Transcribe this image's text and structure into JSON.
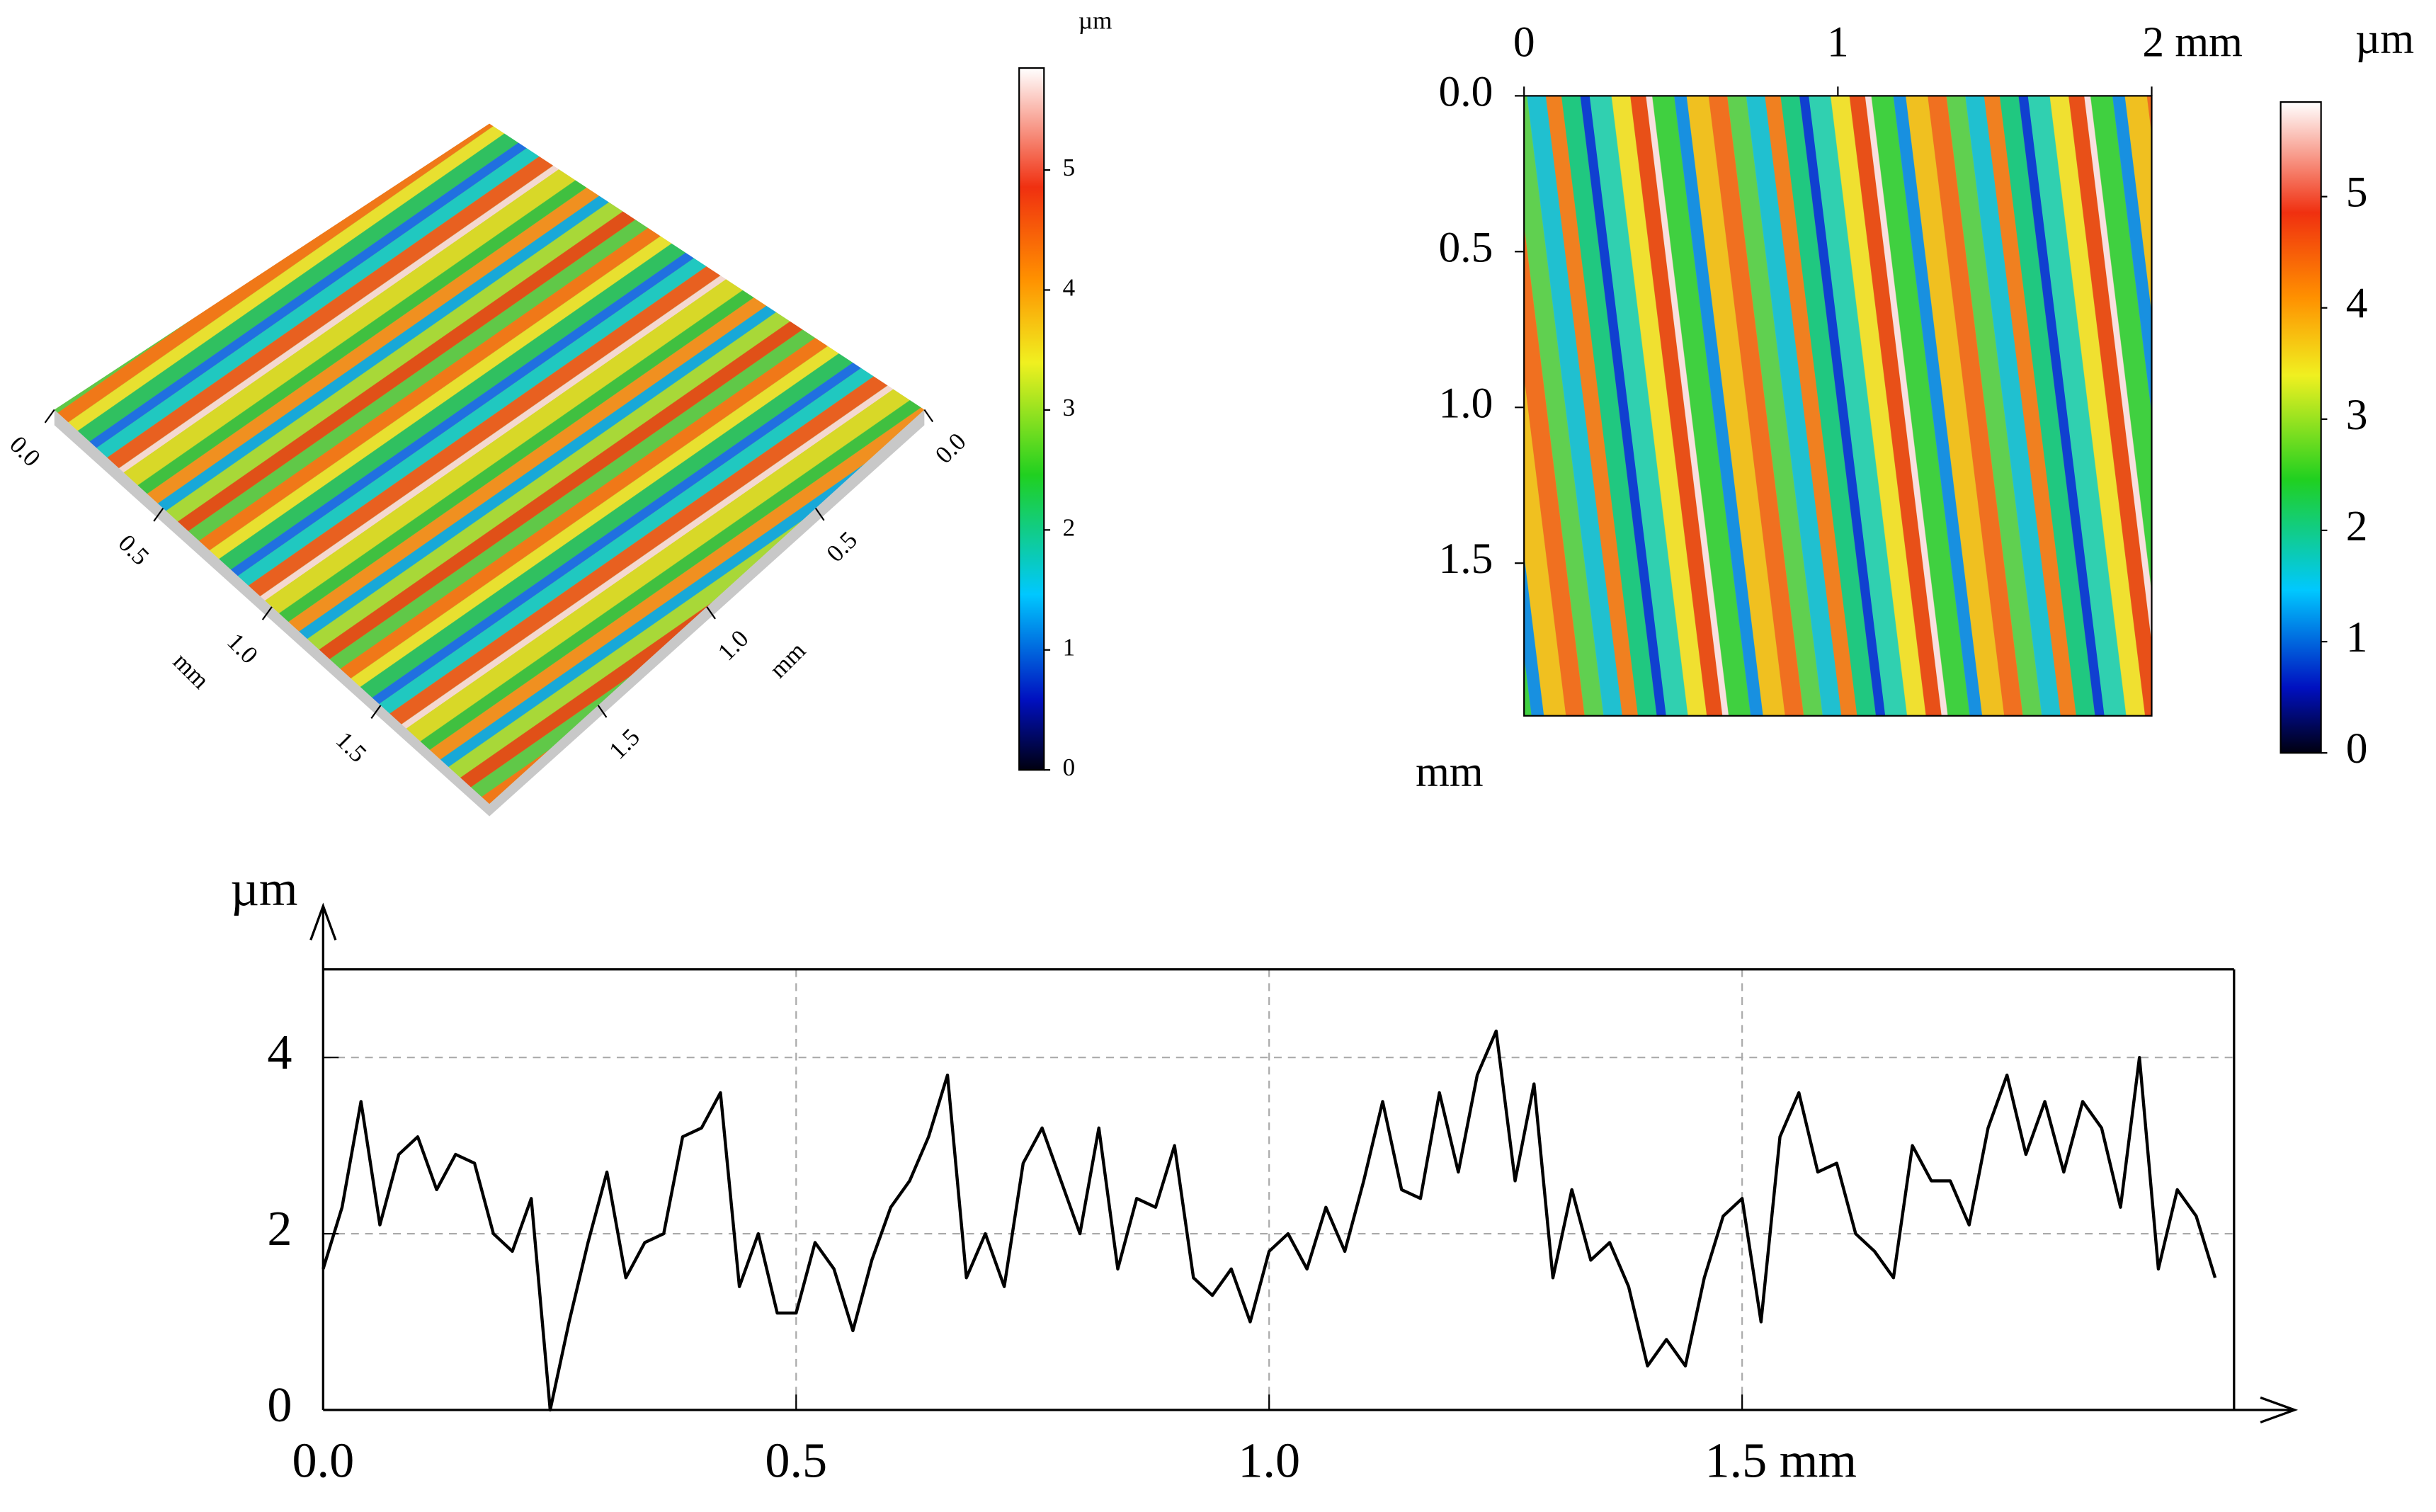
{
  "chart_data": [
    {
      "type": "surface3d",
      "xlabel": "mm",
      "ylabel": "mm",
      "xlim": [
        0,
        2
      ],
      "ylim": [
        0,
        2
      ],
      "xticks": [
        {
          "value": 0,
          "label": "0.0"
        },
        0.5,
        {
          "value": 1,
          "label": "1.0"
        },
        1.5
      ],
      "yticks": [
        {
          "value": 0,
          "label": "0.0"
        },
        0.5,
        {
          "value": 1,
          "label": "1.0"
        },
        1.5
      ],
      "colorbar_label": "µm",
      "clim": [
        0,
        5.85
      ],
      "cticks": [
        0,
        1,
        2,
        3,
        4,
        5
      ]
    },
    {
      "type": "heatmap",
      "ylabel": "mm",
      "xlim": [
        0,
        2
      ],
      "ylim": [
        0,
        1.99
      ],
      "xticks": [
        0,
        1,
        {
          "value": 2,
          "label": "2 mm"
        }
      ],
      "yticks": [
        {
          "value": 0,
          "label": "0.0"
        },
        0.5,
        {
          "value": 1,
          "label": "1.0"
        },
        1.5
      ],
      "colorbar_label": "µm",
      "clim": [
        0,
        5.85
      ],
      "cticks": [
        0,
        1,
        2,
        3,
        4,
        5
      ]
    },
    {
      "type": "line",
      "ylabel": "µm",
      "color": "#000000",
      "grid": true,
      "xlim": [
        0,
        2.02
      ],
      "ylim": [
        0,
        5
      ],
      "xticks": [
        {
          "value": 0,
          "label": "0.0"
        },
        0.5,
        {
          "value": 1,
          "label": "1.0"
        },
        {
          "value": 1.5,
          "label": "1.5 mm"
        }
      ],
      "yticks": [
        0,
        2,
        4
      ],
      "x": [
        0,
        0.02,
        0.04,
        0.06,
        0.08,
        0.1,
        0.12,
        0.14,
        0.16,
        0.18,
        0.2,
        0.22,
        0.24,
        0.26,
        0.28,
        0.3,
        0.32,
        0.34,
        0.36,
        0.38,
        0.4,
        0.42,
        0.44,
        0.46,
        0.48,
        0.5,
        0.52,
        0.54,
        0.56,
        0.58,
        0.6,
        0.62,
        0.64,
        0.66,
        0.68,
        0.7,
        0.72,
        0.74,
        0.76,
        0.78,
        0.8,
        0.82,
        0.84,
        0.86,
        0.88,
        0.9,
        0.92,
        0.94,
        0.96,
        0.98,
        1.0,
        1.02,
        1.04,
        1.06,
        1.08,
        1.1,
        1.12,
        1.14,
        1.16,
        1.18,
        1.2,
        1.22,
        1.24,
        1.26,
        1.28,
        1.3,
        1.32,
        1.34,
        1.36,
        1.38,
        1.4,
        1.42,
        1.44,
        1.46,
        1.48,
        1.5,
        1.52,
        1.54,
        1.56,
        1.58,
        1.6,
        1.62,
        1.64,
        1.66,
        1.68,
        1.7,
        1.72,
        1.74,
        1.76,
        1.78,
        1.8,
        1.82,
        1.84,
        1.86,
        1.88,
        1.9,
        1.92,
        1.94,
        1.96,
        1.98,
        2.0
      ],
      "values": [
        1.6,
        2.3,
        3.5,
        2.1,
        2.9,
        3.1,
        2.5,
        2.9,
        2.8,
        2.0,
        1.8,
        2.4,
        0.0,
        1.0,
        1.9,
        2.7,
        1.5,
        1.9,
        2.0,
        3.1,
        3.2,
        3.6,
        1.4,
        2.0,
        1.1,
        1.1,
        1.9,
        1.6,
        0.9,
        1.7,
        2.3,
        2.6,
        3.1,
        3.8,
        1.5,
        2.0,
        1.4,
        2.8,
        3.2,
        2.6,
        2.0,
        3.2,
        1.6,
        2.4,
        2.3,
        3.0,
        1.5,
        1.3,
        1.6,
        1.0,
        1.8,
        2.0,
        1.6,
        2.3,
        1.8,
        2.6,
        3.5,
        2.5,
        2.4,
        3.6,
        2.7,
        3.8,
        4.3,
        2.6,
        3.7,
        1.5,
        2.5,
        1.7,
        1.9,
        1.4,
        0.5,
        0.8,
        0.5,
        1.5,
        2.2,
        2.4,
        1.0,
        3.1,
        3.6,
        2.7,
        2.8,
        2.0,
        1.8,
        1.5,
        3.0,
        2.6,
        2.6,
        2.1,
        3.2,
        3.8,
        2.9,
        3.5,
        2.7,
        3.5,
        3.2,
        2.3,
        4.0,
        1.6,
        2.5,
        2.2,
        1.5
      ]
    }
  ]
}
